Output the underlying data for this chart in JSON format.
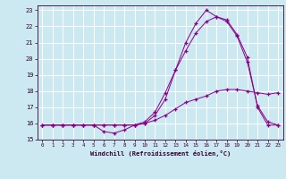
{
  "xlabel": "Windchill (Refroidissement éolien,°C)",
  "bg_color": "#cce8f0",
  "line_color": "#880088",
  "grid_color": "#aaddee",
  "xlim": [
    -0.5,
    23.5
  ],
  "ylim": [
    15,
    23.3
  ],
  "yticks": [
    15,
    16,
    17,
    18,
    19,
    20,
    21,
    22,
    23
  ],
  "xticks": [
    0,
    1,
    2,
    3,
    4,
    5,
    6,
    7,
    8,
    9,
    10,
    11,
    12,
    13,
    14,
    15,
    16,
    17,
    18,
    19,
    20,
    21,
    22,
    23
  ],
  "line1_x": [
    0,
    1,
    2,
    3,
    4,
    5,
    6,
    7,
    8,
    9,
    10,
    11,
    12,
    13,
    14,
    15,
    16,
    17,
    18,
    19,
    20,
    21,
    22,
    23
  ],
  "line1_y": [
    15.9,
    15.9,
    15.9,
    15.9,
    15.9,
    15.9,
    15.9,
    15.9,
    15.9,
    15.9,
    16.0,
    16.2,
    16.5,
    16.9,
    17.3,
    17.5,
    17.7,
    18.0,
    18.1,
    18.1,
    18.0,
    17.9,
    17.8,
    17.9
  ],
  "line2_x": [
    0,
    1,
    2,
    3,
    4,
    5,
    6,
    7,
    8,
    9,
    10,
    11,
    12,
    13,
    14,
    15,
    16,
    17,
    18,
    19,
    20,
    21,
    22,
    23
  ],
  "line2_y": [
    15.9,
    15.9,
    15.9,
    15.9,
    15.9,
    15.9,
    15.5,
    15.4,
    15.6,
    15.9,
    16.0,
    16.5,
    17.5,
    19.3,
    21.0,
    22.2,
    23.0,
    22.6,
    22.4,
    21.5,
    20.1,
    17.0,
    15.9,
    15.9
  ],
  "line3_x": [
    0,
    1,
    2,
    3,
    4,
    5,
    6,
    7,
    8,
    9,
    10,
    11,
    12,
    13,
    14,
    15,
    16,
    17,
    18,
    19,
    20,
    21,
    22,
    23
  ],
  "line3_y": [
    15.9,
    15.9,
    15.9,
    15.9,
    15.9,
    15.9,
    15.9,
    15.9,
    15.9,
    15.9,
    16.1,
    16.7,
    17.9,
    19.3,
    20.5,
    21.6,
    22.3,
    22.6,
    22.3,
    21.4,
    19.8,
    17.1,
    16.1,
    15.9
  ]
}
